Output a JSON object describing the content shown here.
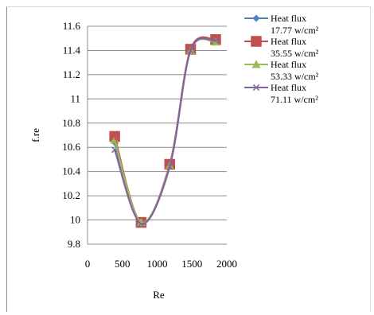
{
  "chart_data": {
    "type": "line",
    "xlabel": "Re",
    "ylabel": "f.re",
    "xlim": [
      0,
      2000
    ],
    "ylim": [
      9.8,
      11.6
    ],
    "xticks": [
      0,
      500,
      1000,
      1500,
      2000
    ],
    "yticks": [
      9.8,
      10,
      10.2,
      10.4,
      10.6,
      10.8,
      11,
      11.2,
      11.4,
      11.6
    ],
    "ytick_labels": [
      "9.8",
      "10",
      "10.2",
      "10.4",
      "10.6",
      "10.8",
      "11",
      "11.2",
      "11.4",
      "11.6"
    ],
    "grid": "horizontal",
    "legend_position": "right",
    "smooth": true,
    "series": [
      {
        "name": "Heat flux",
        "unit_label": "17.77 w/cm²",
        "color": "#4f81bd",
        "marker": "diamond",
        "x": [
          390,
          770,
          1180,
          1480,
          1840
        ],
        "y": [
          10.64,
          9.97,
          10.45,
          11.4,
          11.48
        ]
      },
      {
        "name": "Heat flux",
        "unit_label": "35.55 w/cm²",
        "color": "#c0504d",
        "marker": "square",
        "x": [
          390,
          770,
          1180,
          1480,
          1840
        ],
        "y": [
          10.69,
          9.98,
          10.46,
          11.41,
          11.49
        ]
      },
      {
        "name": "Heat flux",
        "unit_label": "53.33 w/cm²",
        "color": "#9bbb59",
        "marker": "triangle",
        "x": [
          390,
          770,
          1180,
          1480,
          1840
        ],
        "y": [
          10.66,
          9.98,
          10.45,
          11.4,
          11.47
        ]
      },
      {
        "name": "Heat flux",
        "unit_label": "71.11 w/cm²",
        "color": "#8064a2",
        "marker": "x",
        "x": [
          390,
          770,
          1180,
          1480,
          1840
        ],
        "y": [
          10.58,
          9.97,
          10.44,
          11.4,
          11.48
        ]
      }
    ]
  }
}
